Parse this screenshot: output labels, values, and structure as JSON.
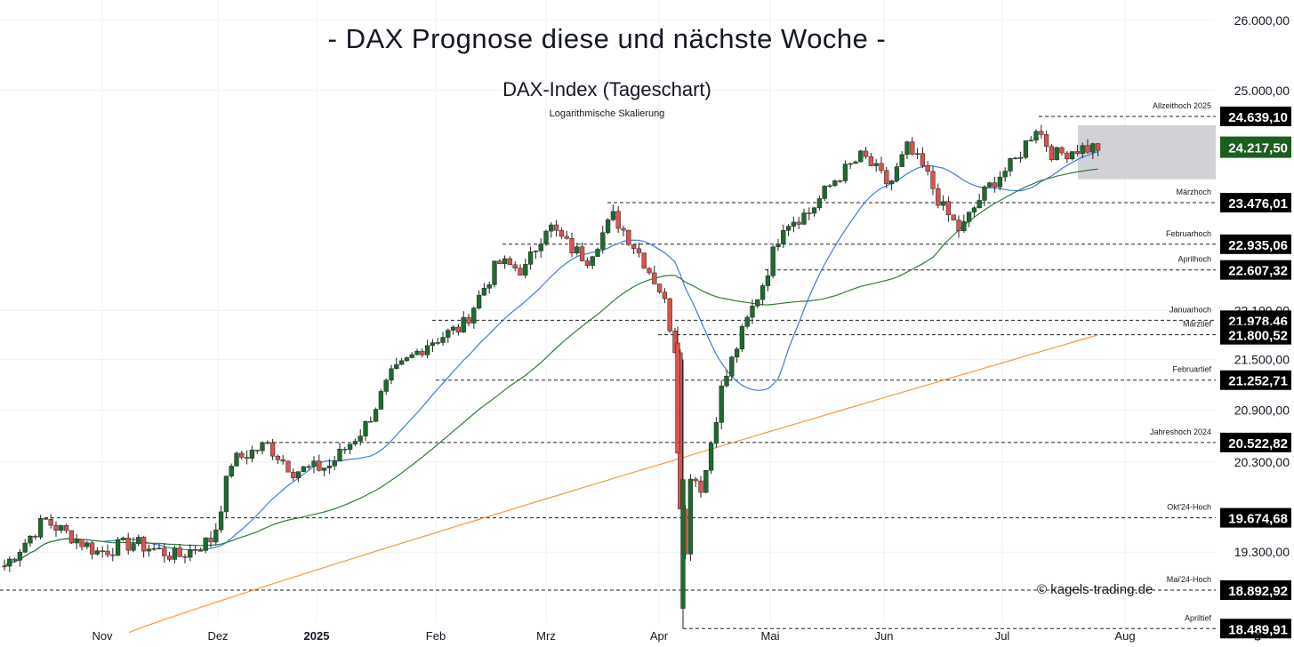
{
  "title": "- DAX Prognose diese und nächste Woche -",
  "subtitle": "DAX-Index (Tageschart)",
  "scale_note": "Logarithmische Skalierung",
  "copyright": "© kagels-trading.de",
  "chart_data": {
    "type": "candlestick",
    "y_scale": "log",
    "ylim": [
      18300,
      26300
    ],
    "x_labels": [
      "Nov",
      "Dez",
      "2025",
      "Feb",
      "Mrz",
      "Apr",
      "Mai",
      "Jun",
      "Jul",
      "Aug"
    ],
    "y_ticks": [
      "26.000,00",
      "25.000,00",
      "22.100,00",
      "21.500,00",
      "20.900,00",
      "20.300,00",
      "19.300,00"
    ],
    "levels": [
      {
        "label": "Allzeithoch 2025",
        "value": "24.639,10"
      },
      {
        "label": "Märzhoch",
        "value": "23.476,01"
      },
      {
        "label": "Februarhoch",
        "value": "22.935,06"
      },
      {
        "label": "Aprilhoch",
        "value": "22.607,32"
      },
      {
        "label": "Januarhoch",
        "value": "21.978,46"
      },
      {
        "label": "Märztief",
        "value": "21.800,52"
      },
      {
        "label": "Februartief",
        "value": "21.252,71"
      },
      {
        "label": "Jahreshoch 2024",
        "value": "20.522,82"
      },
      {
        "label": "Okt'24-Hoch",
        "value": "19.674,68"
      },
      {
        "label": "Mai'24-Hoch",
        "value": "18.892,92"
      },
      {
        "label": "Apriltief",
        "value": "18.489,91"
      }
    ],
    "current_price": "24.217,50",
    "colors": {
      "up": "#1e6b2e",
      "down": "#d9534f",
      "ma_fast": "#3e7bdb",
      "ma_mid": "#2e7d32",
      "ma_slow": "#f39a3e",
      "zone": "#c9c9cf",
      "current": "#1b5e20"
    },
    "grid": true
  }
}
